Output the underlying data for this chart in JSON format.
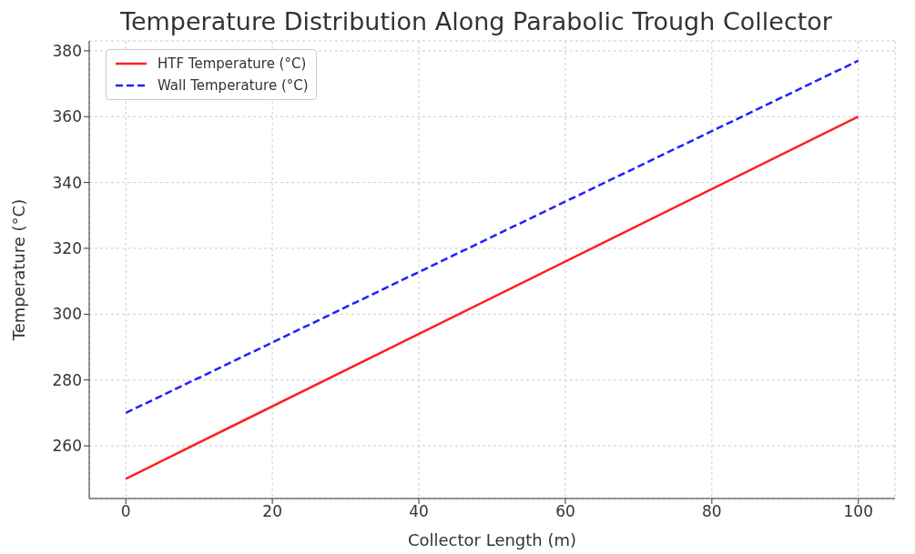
{
  "chart_data": {
    "type": "line",
    "title": "Temperature Distribution Along Parabolic Trough Collector",
    "xlabel": "Collector Length (m)",
    "ylabel": "Temperature (°C)",
    "x": [
      0,
      100
    ],
    "series": [
      {
        "name": "HTF Temperature (°C)",
        "color": "#ff2020",
        "values": [
          250,
          360
        ],
        "line_style": "solid"
      },
      {
        "name": "Wall Temperature (°C)",
        "color": "#2020ff",
        "values": [
          270,
          377
        ],
        "line_style": "dashed"
      }
    ],
    "xlim": [
      -5,
      105
    ],
    "xticks": [
      0,
      20,
      40,
      60,
      80,
      100
    ],
    "ylim": [
      244,
      383
    ],
    "yticks": [
      260,
      280,
      300,
      320,
      340,
      360,
      380
    ],
    "grid": true,
    "legend": "top left",
    "marker": "none"
  }
}
